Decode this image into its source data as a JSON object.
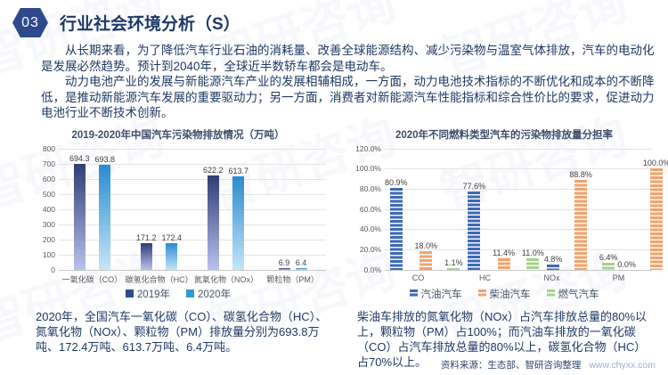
{
  "header": {
    "section_number": "03",
    "title": "行业社会环境分析（S）"
  },
  "intro": {
    "paragraph1": "从长期来看，为了降低汽车行业石油的消耗量、改善全球能源结构、减少污染物与温室气体排放，汽车的电动化是发展必然趋势。预计到2040年，全球近半数轿车都会是电动车。",
    "paragraph2": "动力电池产业的发展与新能源汽车产业的发展相辅相成，一方面，动力电池技术指标的不断优化和成本的不断降低，是推动新能源汽车发展的重要驱动力；另一方面，消费者对新能源汽车性能指标和综合性价比的要求，促进动力电池行业不断技术创新。"
  },
  "chart_data": [
    {
      "type": "bar",
      "title": "2019-2020年中国汽车污染物排放情况（万吨）",
      "categories": [
        "一氧化碳（CO）",
        "碳氢化合物（HC）",
        "氮氧化物（NOx）",
        "颗粒物（PM）"
      ],
      "series": [
        {
          "name": "2019年",
          "values": [
            694.3,
            171.2,
            622.2,
            6.9
          ],
          "labels": [
            "694.3",
            "171.2",
            "622.2",
            "6.9"
          ],
          "style": "gradient",
          "color_top": "#2e3d74",
          "color_bottom": "#b9c1ee",
          "legend_color": "#2e4b8f"
        },
        {
          "name": "2020年",
          "values": [
            693.8,
            172.4,
            613.7,
            6.4
          ],
          "labels": [
            "693.8",
            "172.4",
            "613.7",
            "6.4"
          ],
          "style": "gradient",
          "color_top": "#2a8bd0",
          "color_bottom": "#c4e6f8",
          "legend_color": "#2e9bd6"
        }
      ],
      "ylim": [
        0,
        800
      ],
      "ytick_labels": [
        "0",
        "100",
        "200",
        "300",
        "400",
        "500",
        "600",
        "700",
        "800"
      ],
      "grid": true,
      "legend_position": "bottom"
    },
    {
      "type": "bar",
      "title": "2020年不同燃料类型汽车的污染物排放量分担率",
      "categories": [
        "CO",
        "HC",
        "NOx",
        "PM"
      ],
      "series": [
        {
          "name": "汽油汽车",
          "values": [
            80.9,
            77.6,
            4.8,
            0.0
          ],
          "labels": [
            "80.9%",
            "77.6%",
            "4.8%",
            "0.0%"
          ],
          "style": "striped",
          "color": "#3d6ab8"
        },
        {
          "name": "柴油汽车",
          "values": [
            18.0,
            11.4,
            88.8,
            100.0
          ],
          "labels": [
            "18.0%",
            "11.4%",
            "88.8%",
            "100.0%"
          ],
          "style": "striped",
          "color": "#f2a26d"
        },
        {
          "name": "燃气汽车",
          "values": [
            1.1,
            11.0,
            6.4,
            0.0
          ],
          "labels": [
            "1.1%",
            "11.0%",
            "6.4%",
            "0.0%"
          ],
          "style": "striped",
          "color": "#a9d18e"
        }
      ],
      "ylim": [
        0,
        120
      ],
      "ytick_labels": [
        "0.0%",
        "20.0%",
        "40.0%",
        "60.0%",
        "80.0%",
        "100.0%",
        "120.0%"
      ],
      "grid": true,
      "legend_position": "bottom"
    }
  ],
  "notes": {
    "left": "2020年，全国汽车一氧化碳（CO）、碳氢化合物（HC）、氮氧化物（NOx）、颗粒物（PM）排放量分别为693.8万吨、172.4万吨、613.7万吨、6.4万吨。",
    "right": "柴油车排放的氮氧化物（NOx）占汽车排放总量的80%以上，颗粒物（PM）占100%；而汽油车排放的一氧化碳（CO）占汽车排放总量的80%以上，碳氢化合物（HC）占70%以上。"
  },
  "footer": {
    "source": "资料来源：生态部、智研咨询整理",
    "url": "www.chyxx.com"
  },
  "watermark": {
    "text": "智研咨询"
  },
  "colors": {
    "accent": "#2e4a8d",
    "body_text": "#1f3864",
    "gridline": "#e4e4e4",
    "axis_text": "#595959",
    "url_text": "#9fb0c9"
  }
}
